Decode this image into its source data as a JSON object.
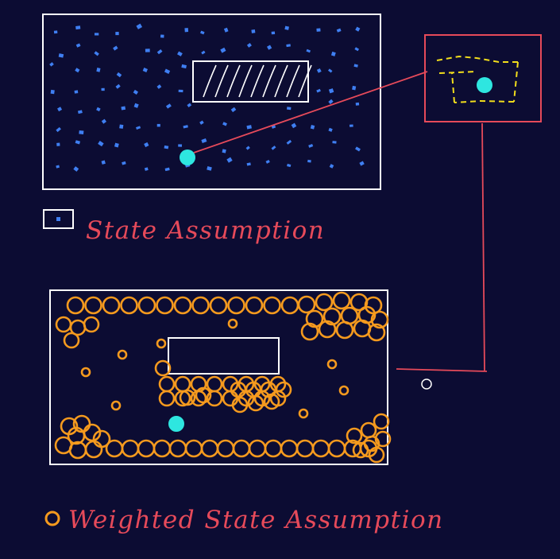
{
  "colors": {
    "background": "#0c0c33",
    "frame": "#ffffff",
    "particles_blue": "#3f7ff2",
    "robot": "#2ee6e0",
    "red": "#e64a5a",
    "weights_orange": "#f59a1e",
    "zoom_yellow": "#f2de1c"
  },
  "labels": {
    "state_assumption": "State Assumption",
    "weighted_state_assumption": "Weighted State Assumption"
  },
  "icons": {
    "legend_square": "small-square-icon",
    "legend_circle": "orange-circle-icon",
    "cursor": "pointer-circle-icon"
  }
}
